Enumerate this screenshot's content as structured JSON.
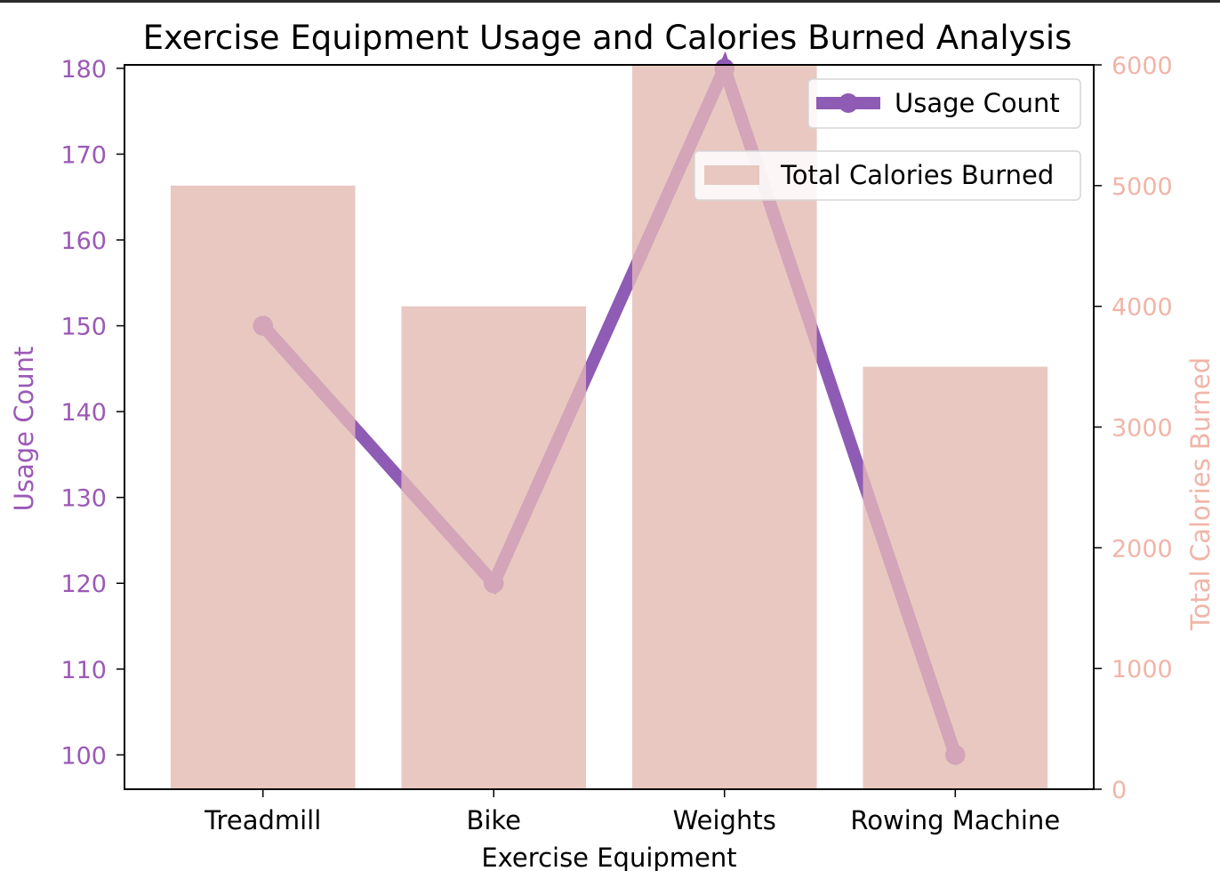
{
  "chart_data": {
    "type": "bar+line",
    "title": "Exercise Equipment Usage and Calories Burned Analysis",
    "xlabel": "Exercise Equipment",
    "categories": [
      "Treadmill",
      "Bike",
      "Weights",
      "Rowing Machine"
    ],
    "left_axis": {
      "label": "Usage Count",
      "ylim": [
        96,
        180.4
      ],
      "ticks": [
        100,
        110,
        120,
        130,
        140,
        150,
        160,
        170,
        180
      ],
      "color": "#9b59b6"
    },
    "right_axis": {
      "label": "Total Calories Burned",
      "ylim": [
        0,
        6000
      ],
      "ticks": [
        0,
        1000,
        2000,
        3000,
        4000,
        5000,
        6000
      ],
      "color": "#f0b5a8"
    },
    "series": [
      {
        "name": "Usage Count",
        "kind": "line",
        "axis": "left",
        "values": [
          150,
          120,
          180,
          100
        ],
        "color": "#8e5bb5"
      },
      {
        "name": "Total Calories Burned",
        "kind": "bar",
        "axis": "right",
        "values": [
          5000,
          4000,
          6000,
          3500
        ],
        "color": "#e8c8c1"
      }
    ],
    "legend": [
      {
        "label": "Usage Count",
        "placement": "top-right"
      },
      {
        "label": "Total Calories Burned",
        "placement": "upper-right"
      }
    ],
    "grid": false
  }
}
